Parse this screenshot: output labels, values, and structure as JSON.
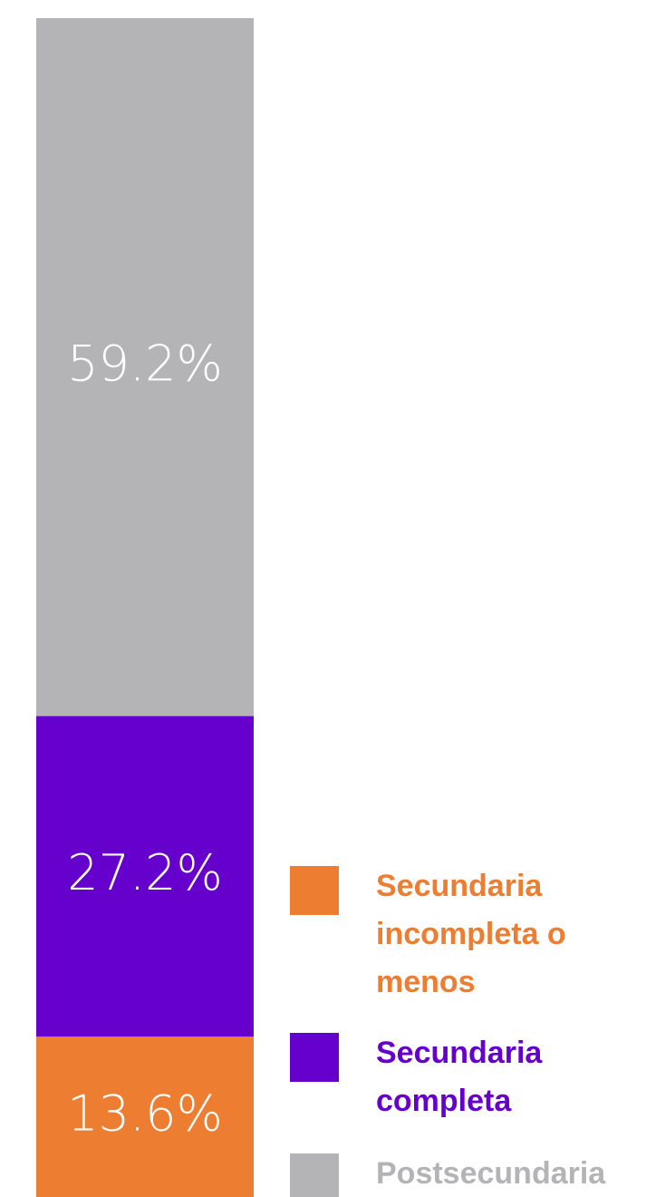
{
  "chart_data": {
    "type": "stacked_bar",
    "series": [
      {
        "name": "Secundaria incompleta o menos",
        "color": "#ed7d31",
        "values": [
          13.6
        ],
        "value_labels": [
          "13.6%"
        ]
      },
      {
        "name": "Secundaria completa",
        "color": "#6600cc",
        "values": [
          27.2
        ],
        "value_labels": [
          "27.2%"
        ]
      },
      {
        "name": "Postsecundaria",
        "color": "#b4b4b6",
        "values": [
          59.2
        ],
        "value_labels": [
          "59.2%"
        ]
      }
    ],
    "ylim": [
      0,
      100
    ]
  }
}
